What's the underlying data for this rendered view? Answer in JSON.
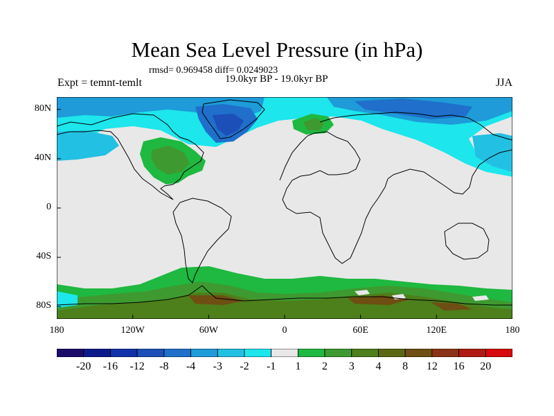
{
  "header": {
    "title": "Mean Sea Level Pressure (in hPa)",
    "stats": "rmsd= 0.969458 diff= 0.0249023",
    "period": "19.0kyr BP - 19.0kyr BP",
    "expt": "Expt = temnt-temlt",
    "season": "JJA"
  },
  "axes": {
    "y_ticks": [
      {
        "value": 80,
        "label": "80N"
      },
      {
        "value": 40,
        "label": "40N"
      },
      {
        "value": 0,
        "label": "0"
      },
      {
        "value": -40,
        "label": "40S"
      },
      {
        "value": -80,
        "label": "80S"
      }
    ],
    "x_ticks": [
      {
        "value": -180,
        "label": "180"
      },
      {
        "value": -120,
        "label": "120W"
      },
      {
        "value": -60,
        "label": "60W"
      },
      {
        "value": 0,
        "label": "0"
      },
      {
        "value": 60,
        "label": "60E"
      },
      {
        "value": 120,
        "label": "120E"
      },
      {
        "value": 180,
        "label": "180"
      }
    ],
    "lon_range": [
      -180,
      180
    ],
    "lat_range": [
      -90,
      90
    ]
  },
  "colorbar": {
    "colors": [
      "#1a0b6a",
      "#0d1a8a",
      "#1132a8",
      "#1d4fb8",
      "#1f6fcb",
      "#1e9bd8",
      "#22c0e2",
      "#1de6ec",
      "#e8e8e8",
      "#1fb840",
      "#3e9a30",
      "#4d7f1a",
      "#5b6612",
      "#6e4e12",
      "#8b3316",
      "#b01a12",
      "#d60a0a"
    ],
    "labels": [
      "-20",
      "-16",
      "-12",
      "-8",
      "-4",
      "-3",
      "-2",
      "-1",
      "1",
      "2",
      "3",
      "4",
      "8",
      "12",
      "16",
      "20"
    ]
  },
  "map_colors": {
    "background": "#e8e8e8",
    "neg1": "#1de6ec",
    "neg2": "#22c0e2",
    "neg3": "#1e9bd8",
    "neg4": "#1f6fcb",
    "neg8": "#1d4fb8",
    "pos1": "#1fb840",
    "pos2": "#3e9a30",
    "pos3": "#4d7f1a",
    "pos4": "#6e4e12",
    "coast": "#000000"
  }
}
